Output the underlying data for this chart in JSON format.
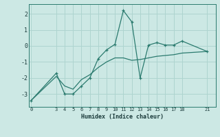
{
  "line1_x": [
    0,
    3,
    4,
    5,
    6,
    7,
    8,
    9,
    10,
    11,
    12,
    13,
    14,
    15,
    16,
    17,
    18,
    21
  ],
  "line1_y": [
    -3.4,
    -1.7,
    -3.0,
    -3.0,
    -2.5,
    -2.0,
    -0.8,
    -0.25,
    0.1,
    2.2,
    1.5,
    -2.0,
    0.05,
    0.2,
    0.05,
    0.05,
    0.3,
    -0.35
  ],
  "line2_x": [
    0,
    3,
    4,
    5,
    6,
    7,
    8,
    9,
    10,
    11,
    12,
    13,
    14,
    15,
    16,
    17,
    18,
    21
  ],
  "line2_y": [
    -3.4,
    -1.9,
    -2.5,
    -2.7,
    -2.1,
    -1.8,
    -1.35,
    -1.0,
    -0.75,
    -0.75,
    -0.9,
    -0.85,
    -0.75,
    -0.65,
    -0.6,
    -0.55,
    -0.45,
    -0.35
  ],
  "line_color": "#2a7a6e",
  "bg_color": "#cce8e4",
  "grid_color": "#aed4cf",
  "xlabel": "Humidex (Indice chaleur)",
  "xticks": [
    0,
    3,
    4,
    5,
    6,
    7,
    8,
    9,
    10,
    11,
    12,
    13,
    14,
    15,
    16,
    17,
    18,
    21
  ],
  "yticks": [
    -3,
    -2,
    -1,
    0,
    1,
    2
  ],
  "ylim": [
    -3.8,
    2.6
  ],
  "xlim": [
    -0.3,
    22.0
  ]
}
